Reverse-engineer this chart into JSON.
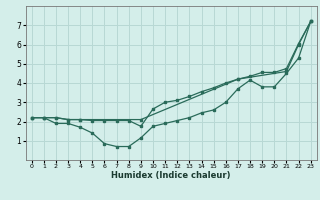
{
  "xlabel": "Humidex (Indice chaleur)",
  "bg_color": "#d4eeea",
  "line_color": "#2a6b5a",
  "grid_color": "#b8d8d4",
  "xlim": [
    -0.5,
    23.5
  ],
  "ylim": [
    0,
    8
  ],
  "yticks": [
    1,
    2,
    3,
    4,
    5,
    6,
    7
  ],
  "xticks": [
    0,
    1,
    2,
    3,
    4,
    5,
    6,
    7,
    8,
    9,
    10,
    11,
    12,
    13,
    14,
    15,
    16,
    17,
    18,
    19,
    20,
    21,
    22,
    23
  ],
  "line1_x": [
    0,
    1,
    2,
    3,
    4,
    9,
    17,
    21,
    22,
    23
  ],
  "line1_y": [
    2.2,
    2.2,
    2.2,
    2.1,
    2.1,
    2.1,
    4.2,
    4.6,
    6.0,
    7.2
  ],
  "line2_x": [
    0,
    1,
    2,
    3,
    4,
    5,
    6,
    7,
    8,
    9,
    10,
    11,
    12,
    13,
    14,
    15,
    16,
    17,
    18,
    19,
    20,
    21,
    22,
    23
  ],
  "line2_y": [
    2.2,
    2.2,
    1.9,
    1.9,
    1.7,
    1.4,
    0.85,
    0.7,
    0.7,
    1.15,
    1.75,
    1.9,
    2.05,
    2.2,
    2.45,
    2.6,
    3.0,
    3.7,
    4.15,
    3.8,
    3.8,
    4.5,
    5.3,
    7.2
  ],
  "line3_x": [
    0,
    1,
    2,
    3,
    4,
    5,
    6,
    7,
    8,
    9,
    10,
    11,
    12,
    13,
    14,
    15,
    16,
    17,
    18,
    19,
    20,
    21,
    22,
    23
  ],
  "line3_y": [
    2.2,
    2.2,
    2.2,
    2.1,
    2.1,
    2.05,
    2.05,
    2.05,
    2.05,
    1.75,
    2.65,
    3.0,
    3.1,
    3.3,
    3.55,
    3.75,
    4.0,
    4.2,
    4.35,
    4.55,
    4.55,
    4.75,
    6.05,
    7.2
  ]
}
